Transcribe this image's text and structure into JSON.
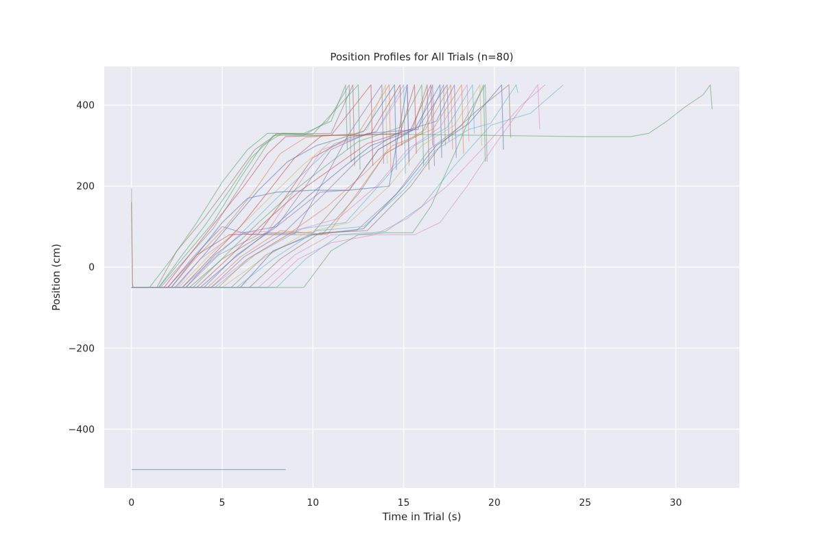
{
  "chart_data": {
    "type": "line",
    "title": "Position Profiles for All Trials (n=80)",
    "xlabel": "Time in Trial (s)",
    "ylabel": "Position (cm)",
    "xlim": [
      -1.5,
      33.5
    ],
    "ylim": [
      -545,
      495
    ],
    "xticks": [
      0,
      5,
      10,
      15,
      20,
      25,
      30
    ],
    "yticks": [
      -400,
      -200,
      0,
      200,
      400
    ],
    "xtick_labels": [
      "0",
      "5",
      "10",
      "15",
      "20",
      "25",
      "30"
    ],
    "ytick_labels": [
      "−400",
      "−200",
      "0",
      "200",
      "400"
    ],
    "grid": true,
    "background_color": "#eaeaf2",
    "palette": [
      "#4c72b0",
      "#dd8452",
      "#55a868",
      "#c44e52",
      "#8172b3",
      "#937860",
      "#da8bc3",
      "#8c8c8c",
      "#ccb974",
      "#64b5cd"
    ],
    "series": [
      {
        "color": "#4c72b0",
        "x": [
          0,
          8.5
        ],
        "y": [
          -500,
          -500
        ]
      },
      {
        "color": "#8c8c8c",
        "x": [
          0,
          0.05,
          0.1,
          0.2,
          1.6,
          3.0,
          4.5,
          6.0,
          7.0,
          7.8,
          9.5,
          10.8,
          12.0,
          12.1,
          12.3
        ],
        "y": [
          195,
          -40,
          -50,
          -50,
          -50,
          20,
          95,
          200,
          270,
          325,
          325,
          360,
          450,
          260,
          270
        ]
      },
      {
        "color": "#937860",
        "x": [
          0,
          0.05,
          0.1,
          1.4,
          2.5,
          4.0,
          5.5,
          6.8,
          8.0,
          11.0,
          12.2,
          12.3
        ],
        "y": [
          160,
          -45,
          -50,
          -50,
          40,
          120,
          210,
          290,
          328,
          330,
          450,
          250
        ]
      },
      {
        "color": "#55a868",
        "x": [
          0,
          1.5,
          2.8,
          4.5,
          6.0,
          7.2,
          8.3,
          10.0,
          12.5,
          12.6
        ],
        "y": [
          -50,
          -50,
          20,
          110,
          220,
          300,
          330,
          328,
          450,
          240
        ]
      },
      {
        "color": "#c44e52",
        "x": [
          0,
          1.8,
          3.2,
          4.6,
          6.2,
          7.5,
          8.5,
          11.0,
          13.2,
          13.3
        ],
        "y": [
          -50,
          -50,
          30,
          110,
          200,
          280,
          322,
          325,
          450,
          250
        ]
      },
      {
        "color": "#8172b3",
        "x": [
          0,
          2.0,
          3.4,
          5.0,
          6.5,
          7.8,
          9.0,
          12.0,
          13.8,
          13.9
        ],
        "y": [
          -50,
          -50,
          25,
          100,
          80,
          82,
          82,
          330,
          450,
          255
        ]
      },
      {
        "color": "#dd8452",
        "x": [
          0,
          2.2,
          3.5,
          5.2,
          6.8,
          8.2,
          9.6,
          12.5,
          14.2,
          14.3
        ],
        "y": [
          -50,
          -50,
          20,
          100,
          190,
          280,
          320,
          330,
          450,
          235
        ]
      },
      {
        "color": "#4c72b0",
        "x": [
          0,
          2.4,
          4.0,
          5.5,
          7.0,
          8.6,
          10.2,
          12.8,
          14.5,
          14.6
        ],
        "y": [
          -50,
          -50,
          30,
          110,
          190,
          260,
          300,
          335,
          450,
          240
        ]
      },
      {
        "color": "#da8bc3",
        "x": [
          0,
          2.5,
          3.8,
          5.8,
          7.5,
          9.0,
          10.5,
          13.5,
          15.2,
          15.3
        ],
        "y": [
          -50,
          -50,
          20,
          85,
          88,
          190,
          290,
          335,
          450,
          250
        ]
      },
      {
        "color": "#ccb974",
        "x": [
          0,
          2.6,
          4.2,
          6.0,
          7.8,
          9.4,
          11.0,
          13.0,
          14.0,
          14.1
        ],
        "y": [
          -50,
          -50,
          25,
          100,
          180,
          250,
          310,
          340,
          450,
          255
        ]
      },
      {
        "color": "#64b5cd",
        "x": [
          0,
          2.8,
          4.5,
          6.2,
          8.0,
          9.8,
          11.2,
          13.5,
          15.0,
          15.1
        ],
        "y": [
          -50,
          -50,
          20,
          90,
          170,
          245,
          305,
          335,
          450,
          230
        ]
      },
      {
        "color": "#8c8c8c",
        "x": [
          0,
          3.0,
          4.8,
          7.0,
          10.5,
          12.5,
          14.0,
          16.0,
          17.2,
          17.3
        ],
        "y": [
          -50,
          -50,
          30,
          80,
          80,
          180,
          280,
          330,
          450,
          300
        ]
      },
      {
        "color": "#937860",
        "x": [
          0,
          3.2,
          5.0,
          7.4,
          10.0,
          12.0,
          13.6,
          15.5,
          16.3,
          16.4
        ],
        "y": [
          -50,
          -50,
          20,
          85,
          85,
          190,
          290,
          340,
          450,
          240
        ]
      },
      {
        "color": "#55a868",
        "x": [
          0,
          3.4,
          5.2,
          7.0,
          9.0,
          11.0,
          12.5,
          14.8,
          16.0,
          16.1
        ],
        "y": [
          -50,
          -50,
          30,
          110,
          190,
          260,
          310,
          345,
          450,
          250
        ]
      },
      {
        "color": "#c44e52",
        "x": [
          0,
          3.6,
          5.4,
          7.2,
          9.2,
          11.4,
          13.0,
          15.4,
          16.5,
          16.6
        ],
        "y": [
          -50,
          -50,
          25,
          105,
          185,
          255,
          305,
          340,
          450,
          300
        ]
      },
      {
        "color": "#4c72b0",
        "x": [
          0,
          3.8,
          5.6,
          7.6,
          9.6,
          11.5,
          13.2,
          15.6,
          17.0,
          17.1
        ],
        "y": [
          -50,
          -50,
          20,
          90,
          170,
          240,
          300,
          340,
          450,
          270
        ]
      },
      {
        "color": "#8172b3",
        "x": [
          0,
          4.0,
          5.8,
          8.0,
          10.4,
          12.0,
          13.6,
          15.8,
          17.4,
          17.5
        ],
        "y": [
          -50,
          -50,
          30,
          100,
          185,
          190,
          290,
          345,
          450,
          310
        ]
      },
      {
        "color": "#dd8452",
        "x": [
          0,
          4.2,
          6.0,
          8.2,
          10.8,
          12.4,
          14.0,
          16.2,
          17.6,
          17.7
        ],
        "y": [
          -50,
          -50,
          25,
          90,
          80,
          180,
          280,
          340,
          450,
          290
        ]
      },
      {
        "color": "#da8bc3",
        "x": [
          0,
          4.4,
          6.4,
          9.0,
          11.4,
          13.5,
          15.2,
          17.0,
          18.5,
          18.6
        ],
        "y": [
          -50,
          -50,
          20,
          90,
          120,
          200,
          290,
          345,
          450,
          310
        ]
      },
      {
        "color": "#64b5cd",
        "x": [
          0,
          4.6,
          6.8,
          9.4,
          11.8,
          13.8,
          15.6,
          17.4,
          18.8,
          18.9
        ],
        "y": [
          -50,
          -50,
          30,
          95,
          110,
          210,
          300,
          345,
          450,
          330
        ]
      },
      {
        "color": "#ccb974",
        "x": [
          0,
          5.0,
          7.2,
          9.6,
          12.0,
          14.2,
          16.0,
          17.8,
          19.2,
          19.3
        ],
        "y": [
          -50,
          -50,
          20,
          85,
          110,
          200,
          300,
          350,
          450,
          300
        ]
      },
      {
        "color": "#8c8c8c",
        "x": [
          0,
          5.5,
          7.4,
          9.8,
          12.4,
          14.6,
          16.4,
          18.2,
          19.5,
          19.6
        ],
        "y": [
          -50,
          -50,
          30,
          80,
          90,
          180,
          290,
          350,
          450,
          260
        ]
      },
      {
        "color": "#4c72b0",
        "x": [
          0,
          6.0,
          7.8,
          10.0,
          12.8,
          15.0,
          16.8,
          18.6,
          20.4,
          20.5
        ],
        "y": [
          -50,
          -50,
          40,
          80,
          95,
          200,
          300,
          355,
          450,
          290
        ]
      },
      {
        "color": "#937860",
        "x": [
          0,
          6.5,
          8.2,
          10.4,
          13.0,
          15.4,
          17.2,
          19.0,
          20.8,
          20.9
        ],
        "y": [
          -50,
          -50,
          20,
          85,
          90,
          200,
          310,
          385,
          450,
          320
        ]
      },
      {
        "color": "#da8bc3",
        "x": [
          0,
          7.0,
          9.0,
          11.0,
          13.5,
          15.6,
          17.0,
          18.5,
          20.0,
          22.4,
          22.5
        ],
        "y": [
          -50,
          -50,
          30,
          80,
          80,
          80,
          110,
          200,
          300,
          450,
          340
        ]
      },
      {
        "color": "#da8bc3",
        "x": [
          0,
          7.5,
          9.2,
          11.0,
          13.4,
          15.2,
          17.4,
          19.5,
          21.5,
          22.8
        ],
        "y": [
          -50,
          -50,
          20,
          60,
          80,
          120,
          200,
          300,
          400,
          450
        ]
      },
      {
        "color": "#64b5cd",
        "x": [
          0,
          8.0,
          9.6,
          11.5,
          14.0,
          16.0,
          17.8,
          19.8,
          22.0,
          23.8
        ],
        "y": [
          -50,
          -50,
          20,
          80,
          88,
          150,
          250,
          350,
          380,
          450
        ]
      },
      {
        "color": "#55a868",
        "x": [
          0,
          9.5,
          11.0,
          12.5,
          14.0,
          15.5,
          16.5,
          18.0,
          19.4,
          19.5
        ],
        "y": [
          -50,
          -50,
          40,
          80,
          85,
          85,
          150,
          300,
          450,
          260
        ]
      },
      {
        "color": "#55a868",
        "x": [
          0,
          1.5,
          2.8,
          4.0,
          5.4,
          6.6,
          8.0,
          10.0,
          14.0,
          20.0,
          25.0,
          27.5,
          28.5,
          29.5,
          30.5,
          31.5,
          31.9,
          32.0
        ],
        "y": [
          -50,
          -50,
          30,
          100,
          190,
          270,
          330,
          325,
          328,
          325,
          322,
          322,
          330,
          360,
          395,
          425,
          450,
          390
        ]
      },
      {
        "color": "#4c72b0",
        "x": [
          0,
          2.2,
          3.6,
          5.0,
          6.4,
          8.0,
          10.0,
          12.0,
          14.2,
          15.2,
          15.3
        ],
        "y": [
          -50,
          -50,
          30,
          110,
          170,
          185,
          190,
          190,
          200,
          450,
          260
        ]
      },
      {
        "color": "#c44e52",
        "x": [
          0,
          2.8,
          4.4,
          6.0,
          7.6,
          9.0,
          10.5,
          12.5,
          14.8,
          15.6,
          15.7
        ],
        "y": [
          -50,
          -50,
          25,
          100,
          190,
          270,
          325,
          325,
          330,
          450,
          280
        ]
      },
      {
        "color": "#8172b3",
        "x": [
          0,
          3.0,
          4.6,
          6.2,
          8.0,
          9.6,
          11.0,
          13.0,
          15.8,
          16.6,
          16.7
        ],
        "y": [
          -50,
          -50,
          30,
          85,
          100,
          200,
          290,
          330,
          340,
          450,
          250
        ]
      },
      {
        "color": "#dd8452",
        "x": [
          0,
          4.8,
          6.4,
          8.6,
          10.8,
          12.8,
          14.4,
          16.6,
          18.2,
          18.3
        ],
        "y": [
          -50,
          -50,
          20,
          80,
          150,
          230,
          300,
          340,
          450,
          280
        ]
      },
      {
        "color": "#55a868",
        "x": [
          0,
          1.0,
          2.2,
          3.6,
          5.0,
          6.4,
          7.5,
          9.5,
          11.0,
          11.8,
          11.9
        ],
        "y": [
          -50,
          -50,
          20,
          110,
          210,
          290,
          330,
          330,
          360,
          450,
          290
        ]
      },
      {
        "color": "#c44e52",
        "x": [
          0,
          2.0,
          3.6,
          5.4,
          7.0,
          8.6,
          10.0,
          12.0,
          13.2,
          14.8,
          14.9
        ],
        "y": [
          -50,
          -50,
          30,
          80,
          82,
          180,
          270,
          320,
          330,
          450,
          300
        ]
      },
      {
        "color": "#8172b3",
        "x": [
          0,
          4.4,
          6.2,
          8.4,
          10.6,
          12.6,
          14.6,
          16.8,
          17.8,
          17.9
        ],
        "y": [
          -50,
          -50,
          25,
          85,
          180,
          270,
          330,
          360,
          450,
          270
        ]
      },
      {
        "color": "#64b5cd",
        "x": [
          0,
          5.8,
          7.8,
          10.2,
          12.8,
          15.0,
          16.8,
          18.6,
          19.8,
          21.2,
          21.3
        ],
        "y": [
          -50,
          -50,
          20,
          90,
          100,
          190,
          290,
          340,
          355,
          450,
          430
        ]
      }
    ]
  }
}
